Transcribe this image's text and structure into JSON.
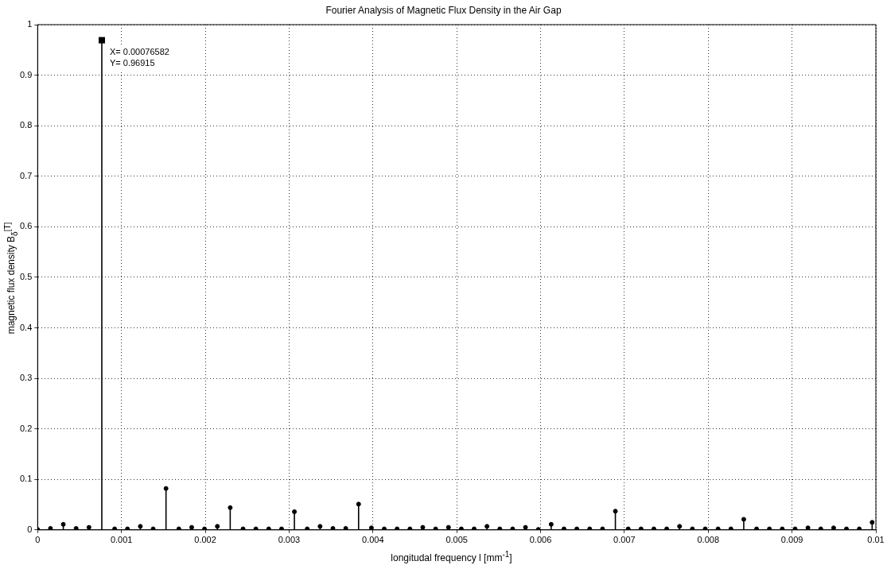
{
  "chart_data": {
    "type": "lollipop",
    "title": "Fourier Analysis of Magnetic Flux Density in the Air Gap",
    "xlabel": "longitudal frequency l [mm$^{-1}$]",
    "ylabel": "magnetic flux density B$_{δ}$$^{[T]}$",
    "x": [
      0,
      0.000153164,
      0.000306328,
      0.000459492,
      0.000612656,
      0.00076582,
      0.000918984,
      0.001072148,
      0.001225312,
      0.001378476,
      0.00153164,
      0.001684804,
      0.001837968,
      0.001991132,
      0.002144296,
      0.00229746,
      0.002450624,
      0.002603788,
      0.002756952,
      0.002910116,
      0.00306328,
      0.003216444,
      0.003369608,
      0.003522772,
      0.003675936,
      0.0038291,
      0.003982264,
      0.004135428,
      0.004288592,
      0.004441756,
      0.00459492,
      0.004748084,
      0.004901248,
      0.005054412,
      0.005207576,
      0.00536074,
      0.005513904,
      0.005667068,
      0.005820232,
      0.005973396,
      0.00612656,
      0.006279724,
      0.006432888,
      0.006586052,
      0.006739216,
      0.00689238,
      0.007045544,
      0.007198708,
      0.007351872,
      0.007505036,
      0.0076582,
      0.007811364,
      0.007964528,
      0.008117692,
      0.008270856,
      0.00842402,
      0.008577184,
      0.008730348,
      0.008883512,
      0.009036676,
      0.00918984,
      0.009343004,
      0.009496168,
      0.009649332,
      0.009802496,
      0.00995566
    ],
    "values": [
      0.001,
      0.003,
      0.011,
      0.003,
      0.005,
      0.96915,
      0.002,
      0.002,
      0.007,
      0.002,
      0.082,
      0.002,
      0.005,
      0.002,
      0.007,
      0.044,
      0.002,
      0.002,
      0.002,
      0.002,
      0.036,
      0.002,
      0.007,
      0.003,
      0.003,
      0.051,
      0.004,
      0.002,
      0.002,
      0.002,
      0.005,
      0.002,
      0.005,
      0.002,
      0.002,
      0.007,
      0.002,
      0.002,
      0.005,
      0.001,
      0.011,
      0.002,
      0.002,
      0.002,
      0.002,
      0.037,
      0.002,
      0.002,
      0.002,
      0.002,
      0.007,
      0.002,
      0.002,
      0.002,
      0.002,
      0.021,
      0.002,
      0.002,
      0.002,
      0.002,
      0.004,
      0.002,
      0.004,
      0.002,
      0.002,
      0.015
    ],
    "color": "#000000",
    "marker": "circle",
    "xlim": [
      0,
      0.01
    ],
    "xticks": [
      0,
      0.001,
      0.002,
      0.003,
      0.004,
      0.005,
      0.006,
      0.007,
      0.008,
      0.009,
      0.01
    ],
    "ylim": [
      0,
      1
    ],
    "yticks": [
      0,
      0.1,
      0.2,
      0.3,
      0.4,
      0.5,
      0.6,
      0.7,
      0.8,
      0.9,
      1
    ],
    "grid": true,
    "annotations": [
      {
        "text": "X= 0.00076582\nY= 0.96915",
        "x": 0.00076582,
        "y": 0.96915
      }
    ]
  }
}
